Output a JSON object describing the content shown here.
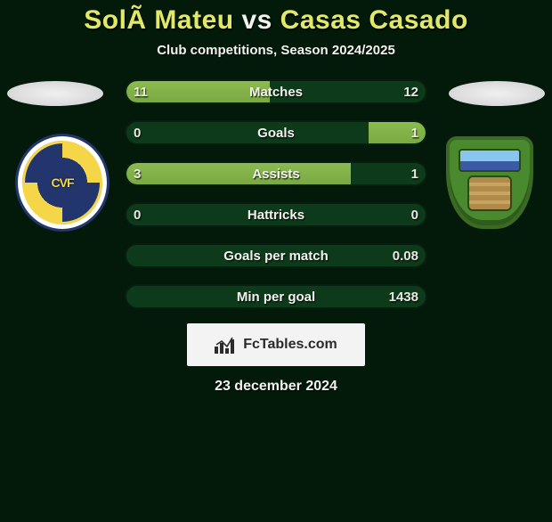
{
  "title": {
    "player1": "SolÃ  Mateu",
    "vs": "vs",
    "player2": "Casas Casado"
  },
  "subtitle": "Club competitions, Season 2024/2025",
  "bars": [
    {
      "label": "Matches",
      "left": "11",
      "right": "12",
      "leftPct": 47.8,
      "rightPct": 52.2,
      "mode": "split"
    },
    {
      "label": "Goals",
      "left": "0",
      "right": "1",
      "leftPct": 0,
      "rightPct": 19,
      "mode": "right"
    },
    {
      "label": "Assists",
      "left": "3",
      "right": "1",
      "leftPct": 75,
      "rightPct": 25,
      "mode": "split"
    },
    {
      "label": "Hattricks",
      "left": "0",
      "right": "0",
      "leftPct": 0,
      "rightPct": 0,
      "mode": "none"
    },
    {
      "label": "Goals per match",
      "left": "",
      "right": "0.08",
      "leftPct": 0,
      "rightPct": 0,
      "mode": "none"
    },
    {
      "label": "Min per goal",
      "left": "",
      "right": "1438",
      "leftPct": 0,
      "rightPct": 0,
      "mode": "none"
    }
  ],
  "branding": {
    "text": "FcTables.com"
  },
  "date": "23 december 2024",
  "crests": {
    "left_alt": "villarreal-crest",
    "right_alt": "fuenlabrada-crest"
  },
  "colors": {
    "bar_fill": "#7aa843",
    "bar_bg": "#0d3a1a",
    "title_white": "#f3f3ee",
    "title_yellow": "#e2e868",
    "page_bg": "#031a0b"
  }
}
